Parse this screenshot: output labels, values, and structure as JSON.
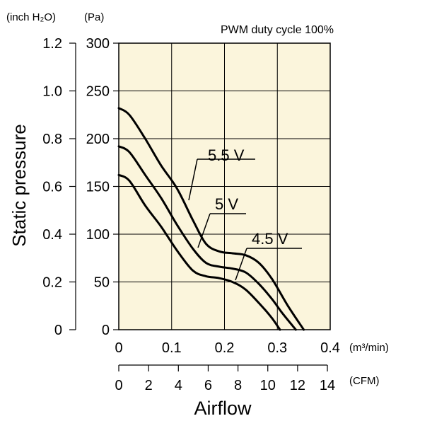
{
  "chart_data": {
    "type": "line",
    "title": "PWM duty cycle 100%",
    "xlabel": "Airflow",
    "ylabel": "Static pressure",
    "y_unit_inch": "(inch H₂O)",
    "y_unit_pa": "(Pa)",
    "x_unit_m3": "(m³/min)",
    "x_unit_cfm": "(CFM)",
    "xlim": [
      0,
      0.4
    ],
    "ylim": [
      0,
      300
    ],
    "x_ticks_m3": [
      "0",
      "0.1",
      "0.2",
      "0.3",
      "0.4"
    ],
    "x_ticks_cfm": [
      "0",
      "2",
      "4",
      "6",
      "8",
      "10",
      "12",
      "14"
    ],
    "y_ticks_pa": [
      "0",
      "50",
      "100",
      "150",
      "200",
      "250",
      "300"
    ],
    "y_ticks_inch": [
      "0",
      "0.2",
      "0.4",
      "0.6",
      "0.8",
      "1.0",
      "1.2"
    ],
    "series": [
      {
        "name": "5.5 V",
        "x": [
          0,
          0.02,
          0.05,
          0.08,
          0.11,
          0.14,
          0.165,
          0.19,
          0.215,
          0.24,
          0.265,
          0.29,
          0.32,
          0.35
        ],
        "y": [
          232,
          225,
          200,
          172,
          148,
          115,
          90,
          82,
          80,
          78,
          70,
          53,
          25,
          0
        ]
      },
      {
        "name": "5 V",
        "x": [
          0,
          0.02,
          0.05,
          0.08,
          0.11,
          0.14,
          0.165,
          0.19,
          0.215,
          0.24,
          0.265,
          0.29,
          0.31,
          0.335
        ],
        "y": [
          192,
          186,
          162,
          138,
          110,
          85,
          70,
          66,
          64,
          60,
          48,
          32,
          17,
          0
        ]
      },
      {
        "name": "4.5 V",
        "x": [
          0,
          0.02,
          0.05,
          0.08,
          0.11,
          0.14,
          0.165,
          0.19,
          0.215,
          0.24,
          0.27,
          0.29,
          0.305
        ],
        "y": [
          162,
          156,
          130,
          108,
          83,
          62,
          56,
          54,
          50,
          42,
          25,
          12,
          0
        ]
      }
    ]
  }
}
